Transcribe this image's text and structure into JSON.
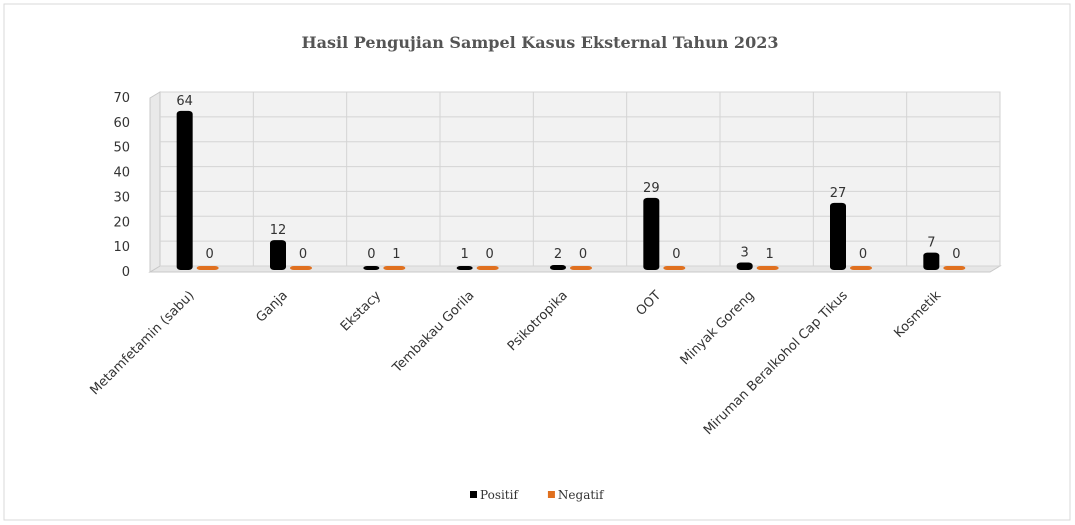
{
  "chart_data": {
    "type": "bar",
    "title": "Hasil Pengujian Sampel Kasus Eksternal Tahun 2023",
    "categories": [
      "Metamfetamin (sabu)",
      "Ganja",
      "Ekstacy",
      "Tembakau Gorila",
      "Psikotropika",
      "OOT",
      "Minyak Goreng",
      "Miruman Beralkohol Cap Tikus",
      "Kosmetik"
    ],
    "series": [
      {
        "name": "Positif",
        "color": "#000000",
        "values": [
          64,
          12,
          0,
          1,
          2,
          29,
          3,
          27,
          7
        ]
      },
      {
        "name": "Negatif",
        "color": "#e0701f",
        "values": [
          0,
          0,
          1,
          0,
          0,
          0,
          1,
          0,
          0
        ]
      }
    ],
    "ylim": [
      0,
      70
    ],
    "yticks": [
      0,
      10,
      20,
      30,
      40,
      50,
      60,
      70
    ],
    "grid": true,
    "legend": "bottom"
  }
}
